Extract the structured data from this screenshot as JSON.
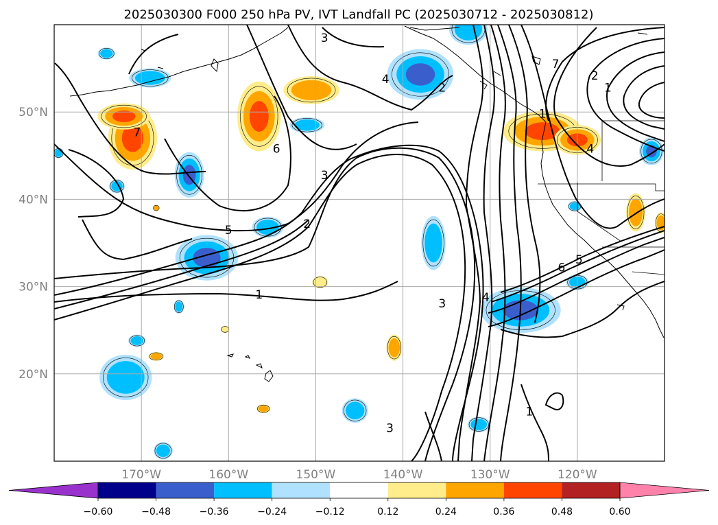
{
  "title": "2025030300 F000 250 hPa PV, IVT Landfall PC (2025030712 - 2025030812)",
  "map": {
    "lon_range": [
      -180,
      -110
    ],
    "lat_range": [
      10,
      60
    ],
    "gridlines": true,
    "lon_ticks": [
      {
        "value": -170,
        "label": "170°W"
      },
      {
        "value": -160,
        "label": "160°W"
      },
      {
        "value": -150,
        "label": "150°W"
      },
      {
        "value": -140,
        "label": "140°W"
      },
      {
        "value": -130,
        "label": "130°W"
      },
      {
        "value": -120,
        "label": "120°W"
      }
    ],
    "lat_ticks": [
      {
        "value": 20,
        "label": "20°N"
      },
      {
        "value": 30,
        "label": "30°N"
      },
      {
        "value": 40,
        "label": "40°N"
      },
      {
        "value": 50,
        "label": "50°N"
      }
    ],
    "pv_contour_labels": [
      {
        "text": "3",
        "lon": -149,
        "lat": 58.5
      },
      {
        "text": "4",
        "lon": -142,
        "lat": 53.8
      },
      {
        "text": "2",
        "lon": -135.5,
        "lat": 52.8
      },
      {
        "text": "1",
        "lon": -124,
        "lat": 49.8
      },
      {
        "text": "7",
        "lon": -170.5,
        "lat": 47.7
      },
      {
        "text": "6",
        "lon": -154.5,
        "lat": 45.8
      },
      {
        "text": "3",
        "lon": -149,
        "lat": 42.8
      },
      {
        "text": "2",
        "lon": -151,
        "lat": 37.2
      },
      {
        "text": "5",
        "lon": -160,
        "lat": 36.5
      },
      {
        "text": "1",
        "lon": -156.5,
        "lat": 29.1
      },
      {
        "text": "3",
        "lon": -135.5,
        "lat": 28.1
      },
      {
        "text": "4",
        "lon": -130.5,
        "lat": 28.8
      },
      {
        "text": "6",
        "lon": -121.8,
        "lat": 32.2
      },
      {
        "text": "5",
        "lon": -119.8,
        "lat": 33.1
      },
      {
        "text": "7",
        "lon": -122.5,
        "lat": 55.5
      },
      {
        "text": "2",
        "lon": -118,
        "lat": 54.2
      },
      {
        "text": "1",
        "lon": -116.5,
        "lat": 52.8
      },
      {
        "text": "4",
        "lon": -118.5,
        "lat": 45.8
      },
      {
        "text": "1",
        "lon": -125.5,
        "lat": 15.7
      },
      {
        "text": "3",
        "lon": -141.5,
        "lat": 13.8
      }
    ],
    "pc_anomaly_regions": [
      {
        "lon": -171,
        "lat": 47,
        "rx": 2.8,
        "ry": 3.6,
        "value": 0.4
      },
      {
        "lon": -172,
        "lat": 49.5,
        "rx": 3,
        "ry": 1.5,
        "value": 0.36
      },
      {
        "lon": -156.5,
        "lat": 49.5,
        "rx": 2.5,
        "ry": 4,
        "value": 0.4
      },
      {
        "lon": -150.5,
        "lat": 52.5,
        "rx": 3.2,
        "ry": 1.6,
        "value": 0.3
      },
      {
        "lon": -124,
        "lat": 47.8,
        "rx": 4.5,
        "ry": 2.3,
        "value": 0.4
      },
      {
        "lon": -120,
        "lat": 46.8,
        "rx": 2.7,
        "ry": 1.7,
        "value": 0.4
      },
      {
        "lon": -113.3,
        "lat": 38.5,
        "rx": 1.1,
        "ry": 2.2,
        "value": 0.3
      },
      {
        "lon": -110.4,
        "lat": 37.3,
        "rx": 0.7,
        "ry": 1.2,
        "value": 0.3
      },
      {
        "lon": -141,
        "lat": 23,
        "rx": 0.9,
        "ry": 1.5,
        "value": 0.3
      },
      {
        "lon": -149.5,
        "lat": 30.5,
        "rx": 0.9,
        "ry": 0.7,
        "value": 0.2
      },
      {
        "lon": -168.3,
        "lat": 22,
        "rx": 0.9,
        "ry": 0.5,
        "value": 0.3
      },
      {
        "lon": -156,
        "lat": 16,
        "rx": 0.8,
        "ry": 0.5,
        "value": 0.3
      },
      {
        "lon": -160.4,
        "lat": 25.1,
        "rx": 0.5,
        "ry": 0.4,
        "value": 0.2
      },
      {
        "lon": -168.3,
        "lat": 39,
        "rx": 0.4,
        "ry": 0.35,
        "value": 0.3
      },
      {
        "lon": -138,
        "lat": 54.3,
        "rx": 3.8,
        "ry": 2.9,
        "value": -0.4
      },
      {
        "lon": -132.5,
        "lat": 59.5,
        "rx": 2.2,
        "ry": 1.8,
        "value": -0.3
      },
      {
        "lon": -164.5,
        "lat": 42.8,
        "rx": 1.7,
        "ry": 2.6,
        "value": -0.4
      },
      {
        "lon": -162.5,
        "lat": 33.3,
        "rx": 3.6,
        "ry": 2.6,
        "value": -0.45
      },
      {
        "lon": -126.5,
        "lat": 27.3,
        "rx": 4.6,
        "ry": 2.6,
        "value": -0.45
      },
      {
        "lon": -120,
        "lat": 30.5,
        "rx": 1.3,
        "ry": 0.9,
        "value": -0.3
      },
      {
        "lon": -169,
        "lat": 53.9,
        "rx": 2.4,
        "ry": 1.1,
        "value": -0.3
      },
      {
        "lon": -174,
        "lat": 56.7,
        "rx": 1,
        "ry": 0.7,
        "value": -0.3
      },
      {
        "lon": -151,
        "lat": 48.5,
        "rx": 2,
        "ry": 0.9,
        "value": -0.3
      },
      {
        "lon": -136.5,
        "lat": 35,
        "rx": 1.4,
        "ry": 3.1,
        "value": -0.35
      },
      {
        "lon": -171.8,
        "lat": 19.6,
        "rx": 3,
        "ry": 2.6,
        "value": -0.35
      },
      {
        "lon": -155.5,
        "lat": 36.8,
        "rx": 1.8,
        "ry": 1.2,
        "value": -0.3
      },
      {
        "lon": -172.8,
        "lat": 41.5,
        "rx": 0.9,
        "ry": 0.8,
        "value": -0.3
      },
      {
        "lon": -111.5,
        "lat": 45.5,
        "rx": 1.4,
        "ry": 1.6,
        "value": -0.4
      },
      {
        "lon": -179.5,
        "lat": 45.3,
        "rx": 0.6,
        "ry": 0.6,
        "value": -0.3
      },
      {
        "lon": -145.5,
        "lat": 15.8,
        "rx": 1.5,
        "ry": 1.4,
        "value": -0.3
      },
      {
        "lon": -131.3,
        "lat": 14.2,
        "rx": 1.3,
        "ry": 0.9,
        "value": -0.3
      },
      {
        "lon": -167.5,
        "lat": 11.2,
        "rx": 1.1,
        "ry": 1,
        "value": -0.3
      },
      {
        "lon": -165.7,
        "lat": 27.7,
        "rx": 0.6,
        "ry": 0.8,
        "value": -0.3
      },
      {
        "lon": -170.5,
        "lat": 23.8,
        "rx": 1,
        "ry": 0.7,
        "value": -0.3
      },
      {
        "lon": -120.3,
        "lat": 39.2,
        "rx": 0.8,
        "ry": 0.6,
        "value": -0.3
      }
    ]
  },
  "colorbar": {
    "levels": [
      -0.6,
      -0.48,
      -0.36,
      -0.24,
      -0.12,
      0.12,
      0.24,
      0.36,
      0.48,
      0.6
    ],
    "labels": [
      "−0.60",
      "−0.48",
      "−0.36",
      "−0.24",
      "−0.12",
      "0.12",
      "0.24",
      "0.36",
      "0.48",
      "0.60"
    ],
    "colors": [
      "#9932cc",
      "#00008b",
      "#3a5fcd",
      "#00bfff",
      "#b0e2ff",
      "#ffffff",
      "#ffec8b",
      "#ffa500",
      "#ff4500",
      "#b22222",
      "#ff82ab"
    ]
  }
}
